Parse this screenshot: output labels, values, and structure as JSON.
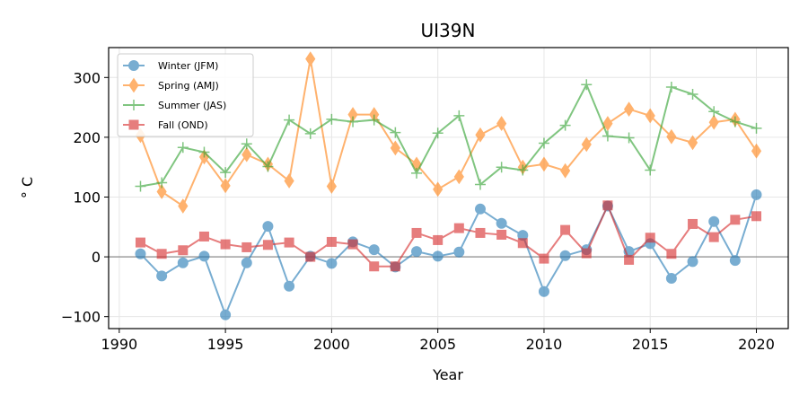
{
  "chart_data": {
    "type": "line",
    "title": "UI39N",
    "xlabel": "Year",
    "ylabel": "$^\\circ$C",
    "ylabel_display": "° C",
    "xlim": [
      1989.5,
      2021.5
    ],
    "ylim": [
      -120,
      350
    ],
    "xticks": [
      1990,
      1995,
      2000,
      2005,
      2010,
      2015,
      2020
    ],
    "yticks": [
      -100,
      0,
      100,
      200,
      300
    ],
    "ytick_labels": [
      "−100",
      "0",
      "100",
      "200",
      "300"
    ],
    "grid": true,
    "zero_line": 0,
    "legend_position": "top-left",
    "x": [
      1991,
      1992,
      1993,
      1994,
      1995,
      1996,
      1997,
      1998,
      1999,
      2000,
      2001,
      2002,
      2003,
      2004,
      2005,
      2006,
      2007,
      2008,
      2009,
      2010,
      2011,
      2012,
      2013,
      2014,
      2015,
      2016,
      2017,
      2018,
      2019,
      2020
    ],
    "series": [
      {
        "name": "Winter (JFM)",
        "color": "#1f77b4",
        "marker": "circle",
        "values": [
          5,
          -32,
          -10,
          1,
          -97,
          -10,
          51,
          -49,
          1,
          -11,
          25,
          12,
          -17,
          9,
          1,
          8,
          80,
          56,
          36,
          -58,
          2,
          12,
          85,
          9,
          22,
          -36,
          -8,
          59,
          -6,
          104
        ]
      },
      {
        "name": "Spring (AMJ)",
        "color": "#ff7f0e",
        "marker": "diamond",
        "values": [
          203,
          109,
          85,
          167,
          119,
          171,
          155,
          127,
          331,
          118,
          238,
          238,
          182,
          155,
          113,
          134,
          204,
          223,
          150,
          155,
          144,
          188,
          223,
          247,
          236,
          201,
          191,
          225,
          230,
          177
        ]
      },
      {
        "name": "Summer (JAS)",
        "color": "#2ca02c",
        "marker": "plus",
        "values": [
          118,
          124,
          183,
          175,
          141,
          189,
          151,
          229,
          206,
          230,
          226,
          229,
          208,
          140,
          207,
          236,
          121,
          150,
          145,
          190,
          220,
          288,
          202,
          199,
          145,
          284,
          272,
          243,
          226,
          215
        ]
      },
      {
        "name": "Fall (OND)",
        "color": "#d62728",
        "marker": "square",
        "values": [
          24,
          5,
          11,
          34,
          21,
          16,
          20,
          24,
          0,
          25,
          21,
          -16,
          -16,
          40,
          28,
          48,
          40,
          37,
          23,
          -3,
          45,
          6,
          86,
          -5,
          32,
          5,
          55,
          33,
          62,
          68
        ]
      }
    ]
  }
}
